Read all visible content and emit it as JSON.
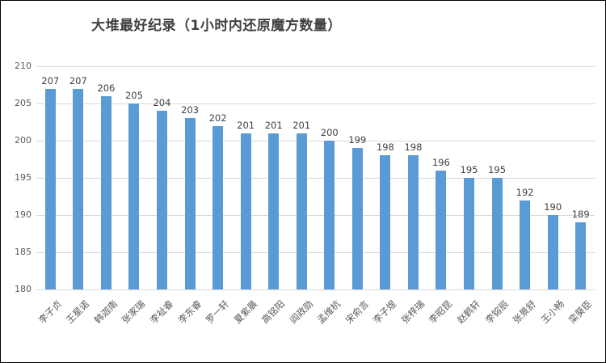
{
  "window": {
    "background": "#ffffff",
    "border_color": "#000000"
  },
  "chart_data": {
    "type": "bar",
    "title": "大堆最好纪录（1小时内还原魔方数量）",
    "categories": [
      "李子贞",
      "王星诺",
      "韩迦南",
      "张家瑞",
      "李祉睿",
      "李东睿",
      "罗一轩",
      "夏紫晨",
      "高铭阳",
      "阎政勋",
      "孟维杭",
      "宋俞言",
      "李子煜",
      "张梓瑞",
      "李昭昆",
      "赵鹤轩",
      "李镕辰",
      "张景舒",
      "王小畅",
      "栾葵臣"
    ],
    "values": [
      207,
      207,
      206,
      205,
      204,
      203,
      202,
      201,
      201,
      201,
      200,
      199,
      198,
      198,
      196,
      195,
      195,
      192,
      190,
      189
    ],
    "data_labels": [
      207,
      207,
      206,
      205,
      204,
      203,
      202,
      201,
      201,
      201,
      200,
      199,
      198,
      198,
      196,
      195,
      195,
      192,
      190,
      189
    ],
    "xlabel": "",
    "ylabel": "",
    "ylim": [
      180,
      210
    ],
    "yticks": [
      180,
      185,
      190,
      195,
      200,
      205,
      210
    ],
    "grid": true,
    "legend_position": "none",
    "bar_color": "#5b9bd5",
    "gridline_color": "#d9d9d9",
    "value_label_color": "#404040",
    "axis_label_color": "#595959",
    "xlabel_rotation_deg": 45
  }
}
